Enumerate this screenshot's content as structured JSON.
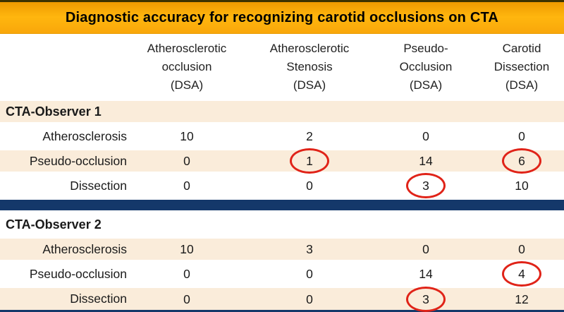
{
  "title": "Diagnostic accuracy for recognizing carotid occlusions on CTA",
  "colors": {
    "accent_orange": "#f9a70a",
    "accent_orange_dark": "#ef9b00",
    "row_tint": "#faecda",
    "divider_navy": "#14386a",
    "circle_red": "#e02318",
    "text": "#1a1a1a"
  },
  "columns": [
    {
      "lines": [
        "Atherosclerotic",
        "occlusion",
        "(DSA)"
      ]
    },
    {
      "lines": [
        "Atherosclerotic",
        "Stenosis",
        "(DSA)"
      ]
    },
    {
      "lines": [
        "Pseudo-",
        "Occlusion",
        "(DSA)"
      ]
    },
    {
      "lines": [
        "Carotid",
        "Dissection",
        "(DSA)"
      ]
    }
  ],
  "sections": [
    {
      "header": "CTA-Observer 1",
      "rows": [
        {
          "label": "Atherosclerosis",
          "values": [
            "10",
            "2",
            "0",
            "0"
          ],
          "circled": [
            false,
            false,
            false,
            false
          ]
        },
        {
          "label": "Pseudo-occlusion",
          "values": [
            "0",
            "1",
            "14",
            "6"
          ],
          "circled": [
            false,
            true,
            false,
            true
          ]
        },
        {
          "label": "Dissection",
          "values": [
            "0",
            "0",
            "3",
            "10"
          ],
          "circled": [
            false,
            false,
            true,
            false
          ]
        }
      ]
    },
    {
      "header": "CTA-Observer 2",
      "rows": [
        {
          "label": "Atherosclerosis",
          "values": [
            "10",
            "3",
            "0",
            "0"
          ],
          "circled": [
            false,
            false,
            false,
            false
          ]
        },
        {
          "label": "Pseudo-occlusion",
          "values": [
            "0",
            "0",
            "14",
            "4"
          ],
          "circled": [
            false,
            false,
            false,
            true
          ]
        },
        {
          "label": "Dissection",
          "values": [
            "0",
            "0",
            "3",
            "12"
          ],
          "circled": [
            false,
            false,
            true,
            false
          ]
        }
      ]
    }
  ],
  "chart_data": {
    "type": "table",
    "title": "Diagnostic accuracy for recognizing carotid occlusions on CTA",
    "column_headers": [
      "Atherosclerotic occlusion (DSA)",
      "Atherosclerotic Stenosis (DSA)",
      "Pseudo-Occlusion (DSA)",
      "Carotid Dissection (DSA)"
    ],
    "groups": [
      {
        "name": "CTA-Observer 1",
        "rows": [
          {
            "label": "Atherosclerosis",
            "values": [
              10,
              2,
              0,
              0
            ]
          },
          {
            "label": "Pseudo-occlusion",
            "values": [
              0,
              1,
              14,
              6
            ],
            "highlighted_columns": [
              1,
              3
            ]
          },
          {
            "label": "Dissection",
            "values": [
              0,
              0,
              3,
              10
            ],
            "highlighted_columns": [
              2
            ]
          }
        ]
      },
      {
        "name": "CTA-Observer 2",
        "rows": [
          {
            "label": "Atherosclerosis",
            "values": [
              10,
              3,
              0,
              0
            ]
          },
          {
            "label": "Pseudo-occlusion",
            "values": [
              0,
              0,
              14,
              4
            ],
            "highlighted_columns": [
              3
            ]
          },
          {
            "label": "Dissection",
            "values": [
              0,
              0,
              3,
              12
            ],
            "highlighted_columns": [
              2
            ]
          }
        ]
      }
    ]
  }
}
